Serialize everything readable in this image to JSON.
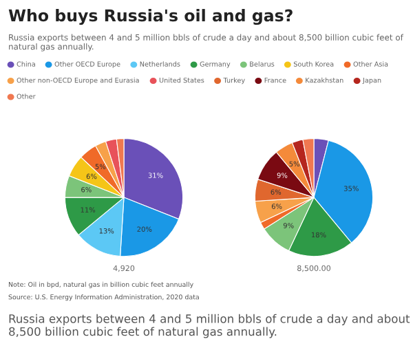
{
  "chart_data": [
    {
      "type": "pie",
      "title": "Who buys Russia's oil and gas?",
      "subtitle": "Russia exports between 4 and 5 million bbls of crude a day and about 8,500 billion cubic feet of natural gas annually.",
      "legend": "top",
      "xlabel": "4,920",
      "categories": [
        "China",
        "Other OECD Europe",
        "Netherlands",
        "Germany",
        "Belarus",
        "South Korea",
        "Other Asia",
        "Other non-OECD Europe and Eurasia",
        "United States",
        "Turkey",
        "France",
        "Kazakhstan",
        "Japan",
        "Other"
      ],
      "colors": [
        "#6a50b8",
        "#1a98e6",
        "#5cc8f5",
        "#2e9a47",
        "#7cc47a",
        "#f5c518",
        "#f06a28",
        "#f7a14a",
        "#e8525a",
        "#e0672e",
        "#7a0a12",
        "#f48a3a",
        "#b5261e",
        "#f07850"
      ],
      "values": [
        31,
        20,
        13,
        11,
        6,
        6,
        5,
        3,
        3,
        null,
        null,
        null,
        null,
        2
      ],
      "value_labels": [
        "31%",
        "20%",
        "13%",
        "11%",
        "6%",
        "6%",
        "5%",
        null,
        null,
        null,
        null,
        null,
        null,
        null
      ],
      "annotations": [
        "Note: Oil in bpd, natural gas in billion cubic feet annually",
        "Source: U.S. Energy Information Administration, 2020 data",
        "Russia exports between 4 and 5 million bbls of crude a day and about 8,500 billion cubic feet of natural gas annually."
      ]
    },
    {
      "type": "pie",
      "xlabel": "8,500.00",
      "categories": [
        null,
        null,
        null,
        null,
        null,
        null,
        null,
        null,
        null,
        null,
        null,
        null,
        null,
        null
      ],
      "colors": [
        "#6a50b8",
        "#1a98e6",
        "#5cc8f5",
        "#2e9a47",
        "#7cc47a",
        "#f5c518",
        "#f06a28",
        "#f7a14a",
        "#e8525a",
        "#e0672e",
        "#7a0a12",
        "#f48a3a",
        "#b5261e",
        "#f07850"
      ],
      "values": [
        4,
        35,
        null,
        18,
        9,
        null,
        2,
        6,
        null,
        6,
        9,
        5,
        3,
        3
      ],
      "value_labels": [
        null,
        "35%",
        null,
        "18%",
        "9%",
        null,
        null,
        "6%",
        null,
        "6%",
        "9%",
        "5%",
        null,
        null
      ]
    }
  ]
}
